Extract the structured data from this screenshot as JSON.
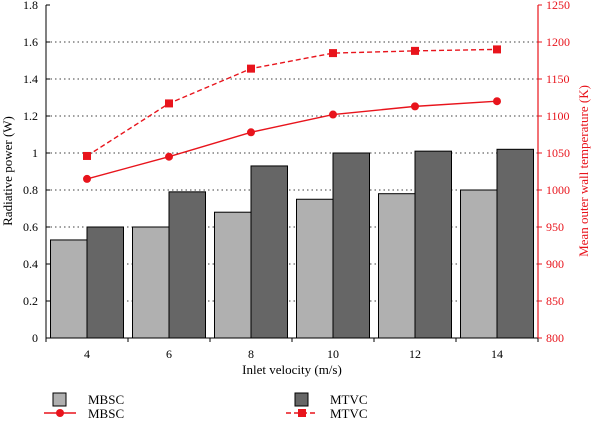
{
  "chart_data": {
    "type": "bar",
    "categories": [
      "4",
      "6",
      "8",
      "10",
      "12",
      "14"
    ],
    "xlabel": "Inlet velocity (m/s)",
    "ylabel_left": "Radiative power (W)",
    "ylabel_right": "Mean outer wall temperature (K)",
    "ylim_left": [
      0,
      1.8
    ],
    "ylim_right": [
      800,
      1250
    ],
    "yticks_left": [
      "0",
      "0.2",
      "0.4",
      "0.6",
      "0.8",
      "1",
      "1.2",
      "1.4",
      "1.6",
      "1.8"
    ],
    "yticks_right": [
      "800",
      "850",
      "900",
      "950",
      "1000",
      "1050",
      "1100",
      "1150",
      "1200",
      "1250"
    ],
    "grid": "horizontal dotted",
    "legend_position": "bottom",
    "series": [
      {
        "name": "MBSC",
        "kind": "bar",
        "axis": "left",
        "color": "#b0b0b0",
        "values": [
          0.53,
          0.6,
          0.68,
          0.75,
          0.78,
          0.8
        ]
      },
      {
        "name": "MTVC",
        "kind": "bar",
        "axis": "left",
        "color": "#666666",
        "values": [
          0.6,
          0.79,
          0.93,
          1.0,
          1.01,
          1.02
        ]
      },
      {
        "name": "MBSC",
        "kind": "line",
        "axis": "right",
        "marker": "circle",
        "dash": "solid",
        "color": "#e8141c",
        "values": [
          1015,
          1045,
          1078,
          1102,
          1113,
          1120
        ]
      },
      {
        "name": "MTVC",
        "kind": "line",
        "axis": "right",
        "marker": "square",
        "dash": "dashed",
        "color": "#e8141c",
        "values": [
          1046,
          1117,
          1164,
          1185,
          1188,
          1190
        ]
      }
    ]
  }
}
